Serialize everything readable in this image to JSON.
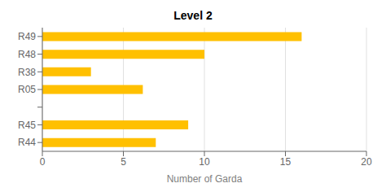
{
  "chart_data": {
    "type": "bar",
    "title": "Level 2",
    "orientation": "horizontal",
    "categories": [
      "R49",
      "R48",
      "R38",
      "R05",
      null,
      "R45",
      "R44"
    ],
    "values": [
      16,
      10,
      3,
      6.2,
      null,
      9,
      7
    ],
    "color": "#FFC000",
    "xlabel": "Number of Garda",
    "xlim": [
      0,
      20
    ],
    "xticks": [
      0,
      5,
      10,
      15,
      20
    ],
    "grid": true
  }
}
